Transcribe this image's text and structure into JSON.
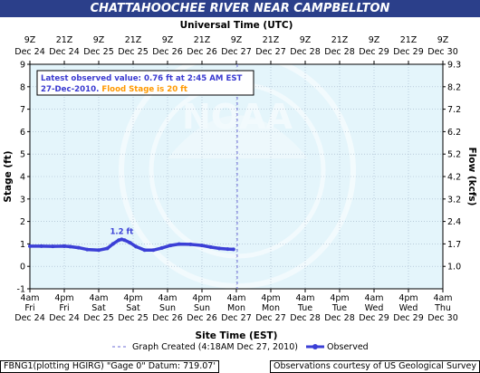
{
  "title": "CHATTAHOOCHEE RIVER NEAR CAMPBELLTON",
  "top_axis_title": "Universal Time (UTC)",
  "bottom_axis_title": "Site Time (EST)",
  "left_axis_title": "Stage (ft)",
  "right_axis_title": "Flow (kcfs)",
  "info_box": {
    "line1": "Latest observed value: 0.76 ft at 2:45 AM EST",
    "line2a": "27-Dec-2010.",
    "line2b": "Flood Stage is 20 ft"
  },
  "peak_label": "1.2 ft",
  "legend": {
    "created": "Graph Created (4:18AM Dec 27, 2010)",
    "observed": "Observed"
  },
  "footer_left": "FBNG1(plotting HGIRG) \"Gage 0\" Datum: 719.07'",
  "footer_right": "Observations courtesy of US Geological Survey",
  "watermark": "NOAA",
  "colors": {
    "title_bg": "#2b3f8a",
    "plot_bg": "#e4f5fb",
    "observed_line": "#3b3fd6",
    "flood_text": "#ff9900",
    "info_text": "#3a3ad0"
  },
  "chart_data": {
    "type": "line",
    "x_unit": "hours from Dec 24 4am EST",
    "x_range": [
      0,
      144
    ],
    "y_left_range": [
      -1,
      9
    ],
    "y_left_ticks": [
      -1,
      0,
      1,
      2,
      3,
      4,
      5,
      6,
      7,
      8,
      9
    ],
    "y_right_ticks": [
      {
        "stage": 0,
        "label": "1.0"
      },
      {
        "stage": 1,
        "label": "1.7"
      },
      {
        "stage": 2,
        "label": "2.4"
      },
      {
        "stage": 3,
        "label": "3.2"
      },
      {
        "stage": 4,
        "label": "4.2"
      },
      {
        "stage": 5,
        "label": "5.2"
      },
      {
        "stage": 6,
        "label": "6.2"
      },
      {
        "stage": 7,
        "label": "7.2"
      },
      {
        "stage": 8,
        "label": "8.2"
      },
      {
        "stage": 9,
        "label": "9.3"
      }
    ],
    "bottom_ticks": [
      {
        "h": 0,
        "time": "4am",
        "day": "Fri",
        "date": "Dec 24"
      },
      {
        "h": 12,
        "time": "4pm",
        "day": "Fri",
        "date": "Dec 24"
      },
      {
        "h": 24,
        "time": "4am",
        "day": "Sat",
        "date": "Dec 25"
      },
      {
        "h": 36,
        "time": "4pm",
        "day": "Sat",
        "date": "Dec 25"
      },
      {
        "h": 48,
        "time": "4am",
        "day": "Sun",
        "date": "Dec 26"
      },
      {
        "h": 60,
        "time": "4pm",
        "day": "Sun",
        "date": "Dec 26"
      },
      {
        "h": 72,
        "time": "4am",
        "day": "Mon",
        "date": "Dec 27"
      },
      {
        "h": 84,
        "time": "4pm",
        "day": "Mon",
        "date": "Dec 27"
      },
      {
        "h": 96,
        "time": "4am",
        "day": "Tue",
        "date": "Dec 28"
      },
      {
        "h": 108,
        "time": "4pm",
        "day": "Tue",
        "date": "Dec 28"
      },
      {
        "h": 120,
        "time": "4am",
        "day": "Wed",
        "date": "Dec 29"
      },
      {
        "h": 132,
        "time": "4pm",
        "day": "Wed",
        "date": "Dec 29"
      },
      {
        "h": 144,
        "time": "4am",
        "day": "Thu",
        "date": "Dec 30"
      }
    ],
    "top_ticks": [
      {
        "h": 0,
        "time": "9Z",
        "date": "Dec 24"
      },
      {
        "h": 12,
        "time": "21Z",
        "date": "Dec 24"
      },
      {
        "h": 24,
        "time": "9Z",
        "date": "Dec 25"
      },
      {
        "h": 36,
        "time": "21Z",
        "date": "Dec 25"
      },
      {
        "h": 48,
        "time": "9Z",
        "date": "Dec 26"
      },
      {
        "h": 60,
        "time": "21Z",
        "date": "Dec 26"
      },
      {
        "h": 72,
        "time": "9Z",
        "date": "Dec 27"
      },
      {
        "h": 84,
        "time": "21Z",
        "date": "Dec 27"
      },
      {
        "h": 96,
        "time": "9Z",
        "date": "Dec 28"
      },
      {
        "h": 108,
        "time": "21Z",
        "date": "Dec 28"
      },
      {
        "h": 120,
        "time": "9Z",
        "date": "Dec 29"
      },
      {
        "h": 132,
        "time": "21Z",
        "date": "Dec 29"
      },
      {
        "h": 144,
        "time": "9Z",
        "date": "Dec 30"
      }
    ],
    "graph_created_h": 72.3,
    "peak": {
      "h": 32,
      "stage": 1.2
    },
    "series": [
      {
        "name": "Observed",
        "points": [
          [
            0,
            0.9
          ],
          [
            4,
            0.9
          ],
          [
            8,
            0.89
          ],
          [
            12,
            0.9
          ],
          [
            14,
            0.88
          ],
          [
            17,
            0.83
          ],
          [
            20,
            0.75
          ],
          [
            24,
            0.72
          ],
          [
            27,
            0.8
          ],
          [
            29,
            1.0
          ],
          [
            31,
            1.17
          ],
          [
            32,
            1.2
          ],
          [
            33,
            1.17
          ],
          [
            35,
            1.05
          ],
          [
            37,
            0.88
          ],
          [
            40,
            0.72
          ],
          [
            43,
            0.72
          ],
          [
            46,
            0.82
          ],
          [
            49,
            0.93
          ],
          [
            52,
            0.99
          ],
          [
            56,
            0.98
          ],
          [
            60,
            0.93
          ],
          [
            63,
            0.86
          ],
          [
            66,
            0.8
          ],
          [
            69,
            0.77
          ],
          [
            71,
            0.76
          ]
        ]
      }
    ],
    "grid": true,
    "legend_position": "bottom"
  }
}
